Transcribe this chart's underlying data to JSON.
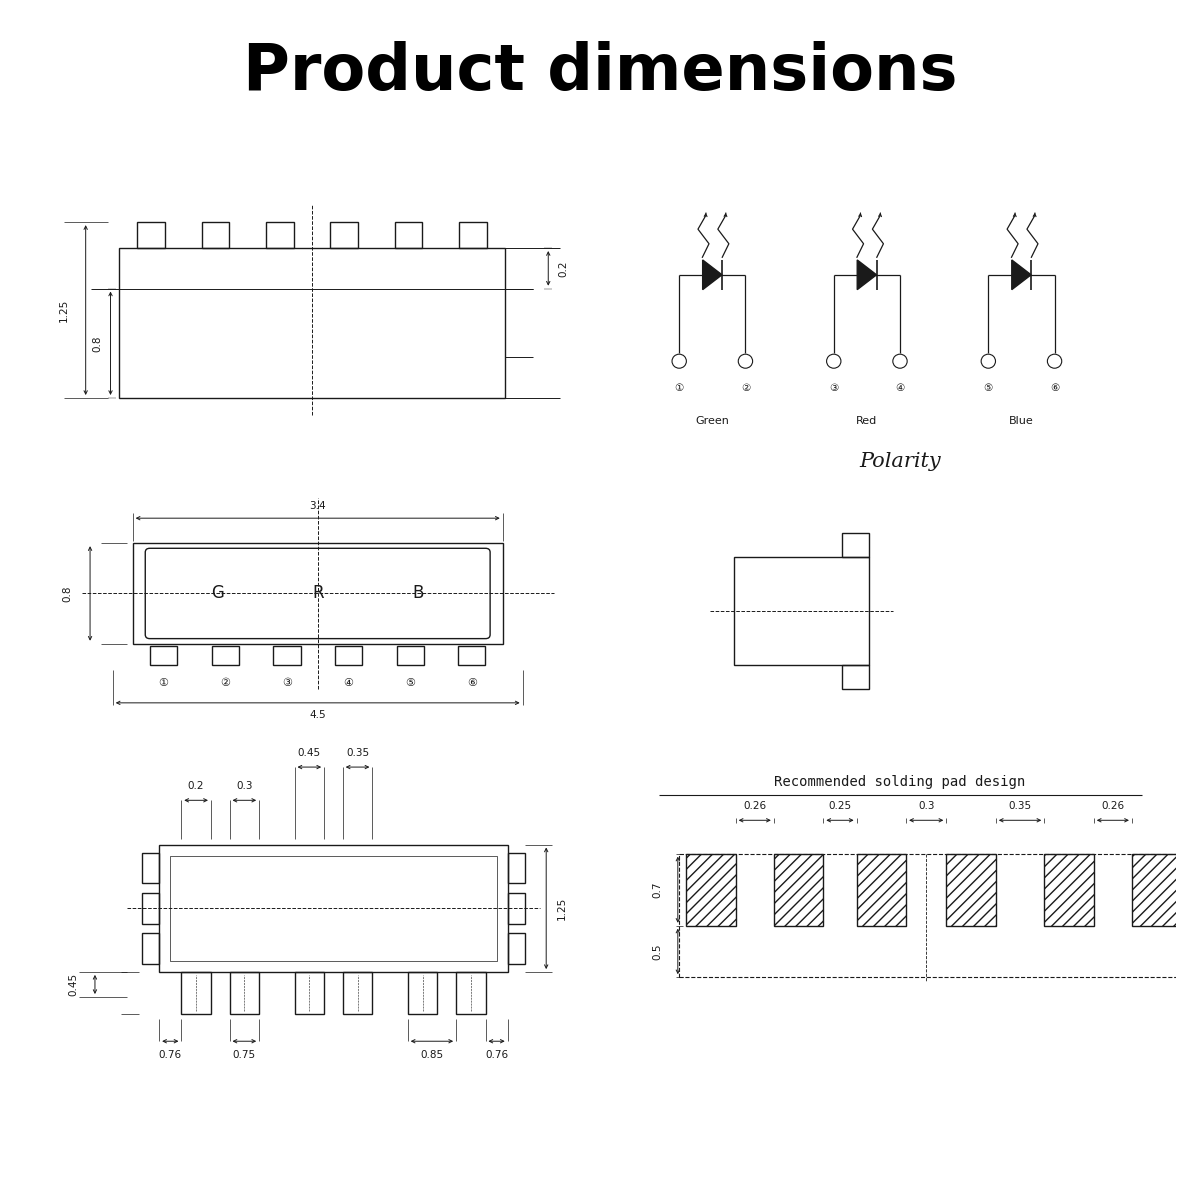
{
  "title": "Product dimensions",
  "bg_color": "#ffffff",
  "lc": "#1a1a1a",
  "lw": 1.0,
  "diagrams": {
    "side_view": {
      "label_125": "1.25",
      "label_08": "0.8",
      "label_02": "0.2"
    },
    "front_view": {
      "label_34": "3.4",
      "label_08": "0.8",
      "label_45": "4.5",
      "grb": [
        "G",
        "R",
        "B"
      ],
      "pins": [
        "①",
        "②",
        "③",
        "④",
        "⑤",
        "⑥"
      ]
    },
    "bottom_view": {
      "label_02": "0.2",
      "label_03": "0.3",
      "label_045t": "0.45",
      "label_035": "0.35",
      "label_125": "1.25",
      "label_045l": "0.45",
      "label_076a": "0.76",
      "label_075": "0.75",
      "label_085": "0.85",
      "label_076b": "0.76"
    },
    "side_view2": {},
    "solder_pad": {
      "title": "Recommended solding pad design",
      "gaps": [
        "0.26",
        "0.25",
        "0.3",
        "0.35",
        "0.26"
      ],
      "label_07": "0.7",
      "label_05": "0.5"
    },
    "polarity": {
      "green": "Green",
      "red": "Red",
      "blue": "Blue",
      "title": "Polarity",
      "pins": [
        "①",
        "②",
        "③",
        "④",
        "⑤",
        "⑥"
      ]
    }
  }
}
